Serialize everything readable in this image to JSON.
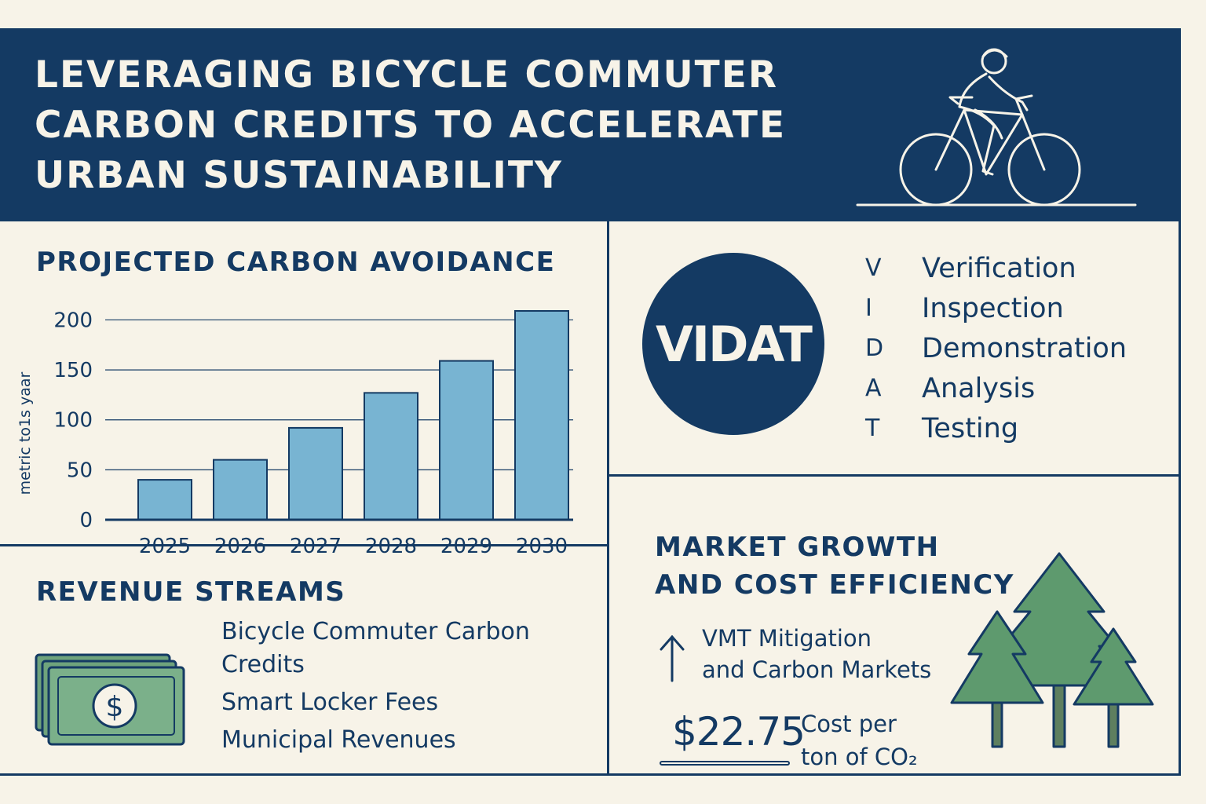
{
  "header": {
    "title": "LEVERAGING BICYCLE COMMUTER\nCARBON CREDITS TO ACCELERATE\nURBAN SUSTAINABILITY"
  },
  "chart_section": {
    "title": "PROJECTED CARBON AVOIDANCE"
  },
  "chart_data": {
    "type": "bar",
    "title": "PROJECTED CARBON AVOIDANCE",
    "ylabel": "metric to1s yaar",
    "xlabel": "",
    "categories": [
      "2025",
      "2026",
      "2027",
      "2028",
      "2029",
      "2030"
    ],
    "values": [
      40,
      60,
      92,
      127,
      159,
      209
    ],
    "yticks": [
      0,
      50,
      100,
      150,
      200
    ],
    "ylim": [
      0,
      220
    ],
    "grid": true,
    "bar_color": "#78b4d2"
  },
  "vidat": {
    "acronym": "VIDAT",
    "items": [
      {
        "letter": "V",
        "word": "Verification"
      },
      {
        "letter": "I",
        "word": "Inspection"
      },
      {
        "letter": "D",
        "word": "Demonstration"
      },
      {
        "letter": "A",
        "word": "Analysis"
      },
      {
        "letter": "T",
        "word": "Testing"
      }
    ]
  },
  "revenue": {
    "title": "REVENUE STREAMS",
    "items": [
      "Bicycle Commuter Carbon Credits",
      "Smart Locker Fees",
      "Municipal Revenues"
    ],
    "icon": "dollar-bills-icon"
  },
  "market": {
    "title": "MARKET GROWTH AND COST EFFICIENCY",
    "growth_text": "VMT Mitigation\nand Carbon Markets",
    "price": "$22.75",
    "price_caption": "Cost per\nton of CO₂",
    "icon": "trees-icon"
  },
  "colors": {
    "navy": "#143a63",
    "cream": "#f7f3e8",
    "bar": "#78b4d2",
    "green": "#5e9a6e"
  }
}
